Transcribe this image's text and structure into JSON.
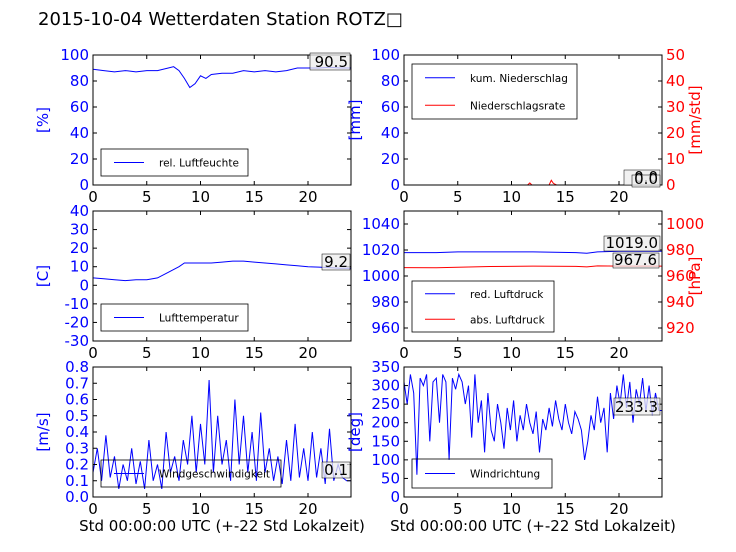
{
  "title": "2015-10-04 Wetterdaten Station ROTZ□",
  "colors": {
    "blue": "#0000ff",
    "red": "#ff0000",
    "black": "#000000"
  },
  "chart_data": [
    {
      "id": "p1",
      "type": "line",
      "ylabel": "[%]",
      "xlim": [
        0,
        24
      ],
      "ylim": [
        0,
        100
      ],
      "xticks": [
        0,
        5,
        10,
        15,
        20
      ],
      "yticks": [
        0,
        20,
        40,
        60,
        80,
        100
      ],
      "value_label": "90.5",
      "legend": {
        "placement": "lower-left",
        "entries": [
          "rel. Luftfeuchte"
        ]
      },
      "series": [
        {
          "name": "rel. Luftfeuchte",
          "color": "#0000ff",
          "x": [
            0,
            1,
            2,
            3,
            4,
            5,
            6,
            7,
            7.5,
            8,
            8.5,
            9,
            9.5,
            10,
            10.5,
            11,
            12,
            13,
            14,
            15,
            16,
            17,
            18,
            19,
            20,
            21,
            22,
            23,
            24
          ],
          "y": [
            89,
            88,
            87,
            88,
            87,
            88,
            88,
            90,
            91,
            88,
            82,
            75,
            78,
            84,
            82,
            85,
            86,
            86,
            88,
            87,
            88,
            87,
            88,
            90,
            90,
            90,
            90.5,
            90,
            90
          ]
        }
      ]
    },
    {
      "id": "p2",
      "type": "line",
      "ylabel": "[mm]",
      "ylabel_right": "[mm/std]",
      "xlim": [
        0,
        24
      ],
      "ylim": [
        0,
        100
      ],
      "ylim_right": [
        0,
        50
      ],
      "xticks": [
        0,
        5,
        10,
        15,
        20
      ],
      "yticks": [
        0,
        20,
        40,
        60,
        80,
        100
      ],
      "yticks_right": [
        0,
        10,
        20,
        30,
        40,
        50
      ],
      "value_labels": [
        "0.0",
        "0.0"
      ],
      "legend": {
        "placement": "upper-left",
        "entries": [
          "kum. Niederschlag",
          "Niederschlagsrate"
        ]
      },
      "series": [
        {
          "name": "kum. Niederschlag",
          "color": "#0000ff",
          "x": [
            0,
            24
          ],
          "y": [
            0,
            0
          ]
        },
        {
          "name": "Niederschlagsrate",
          "color": "#ff0000",
          "axis": "right",
          "x": [
            0,
            11.5,
            11.7,
            11.9,
            13.5,
            13.7,
            13.9,
            14.2,
            24
          ],
          "y": [
            0,
            0,
            0.8,
            0,
            0,
            1.8,
            0.6,
            0,
            0
          ]
        }
      ]
    },
    {
      "id": "p3",
      "type": "line",
      "ylabel": "[C]",
      "xlim": [
        0,
        24
      ],
      "ylim": [
        -30,
        40
      ],
      "xticks": [
        0,
        5,
        10,
        15,
        20
      ],
      "yticks": [
        -30,
        -20,
        -10,
        0,
        10,
        20,
        30,
        40
      ],
      "value_label": "9.2",
      "legend": {
        "placement": "lower-left",
        "entries": [
          "Lufttemperatur"
        ]
      },
      "series": [
        {
          "name": "Lufttemperatur",
          "color": "#0000ff",
          "x": [
            0,
            1,
            2,
            3,
            4,
            5,
            6,
            7,
            8,
            8.5,
            9,
            10,
            11,
            12,
            13,
            14,
            15,
            16,
            17,
            18,
            19,
            20,
            21,
            22,
            23,
            24
          ],
          "y": [
            4,
            3.5,
            3,
            2.5,
            3,
            3,
            4,
            7,
            10,
            12,
            12,
            12,
            12,
            12.5,
            13,
            13,
            12.5,
            12,
            11.5,
            11,
            10.5,
            10,
            9.8,
            9.5,
            9.2,
            9.2
          ]
        }
      ]
    },
    {
      "id": "p4",
      "type": "line",
      "ylabel_right": "[hPa]",
      "xlim": [
        0,
        24
      ],
      "ylim": [
        950,
        1050
      ],
      "ylim_right": [
        910,
        1010
      ],
      "xticks": [
        0,
        5,
        10,
        15,
        20
      ],
      "yticks": [
        960,
        980,
        1000,
        1020,
        1040
      ],
      "yticks_right": [
        920,
        940,
        960,
        980,
        1000
      ],
      "value_labels": [
        "1019.0",
        "967.6"
      ],
      "legend": {
        "placement": "lower-left",
        "entries": [
          "red. Luftdruck",
          "abs. Luftdruck"
        ]
      },
      "series": [
        {
          "name": "red. Luftdruck",
          "color": "#0000ff",
          "x": [
            0,
            3,
            5,
            8,
            12,
            16,
            17,
            18,
            20,
            24
          ],
          "y": [
            1018,
            1018,
            1018.5,
            1018.5,
            1018.5,
            1018,
            1017.5,
            1018.5,
            1019,
            1019
          ]
        },
        {
          "name": "abs. Luftdruck",
          "color": "#ff0000",
          "axis": "right",
          "x": [
            0,
            3,
            5,
            8,
            12,
            16,
            17,
            18,
            20,
            24
          ],
          "y": [
            966.5,
            966.3,
            966.8,
            967.3,
            967.6,
            967.4,
            967,
            967.8,
            967.6,
            967.6
          ]
        }
      ]
    },
    {
      "id": "p5",
      "type": "line",
      "ylabel": "[m/s]",
      "xlabel": "Std 00:00:00 UTC (+-22 Std Lokalzeit)",
      "xlim": [
        0,
        24
      ],
      "ylim": [
        0,
        0.8
      ],
      "xticks": [
        0,
        5,
        10,
        15,
        20
      ],
      "yticks": [
        0.0,
        0.1,
        0.2,
        0.3,
        0.4,
        0.5,
        0.6,
        0.7,
        0.8
      ],
      "value_label": "0.1",
      "legend": {
        "placement": "lower-left",
        "entries": [
          "Windgeschwindigkeit"
        ]
      },
      "series": [
        {
          "name": "Windgeschwindigkeit",
          "color": "#0000ff",
          "x": [
            0,
            0.4,
            0.8,
            1.2,
            1.6,
            2,
            2.4,
            2.8,
            3.2,
            3.6,
            4,
            4.4,
            4.8,
            5.2,
            5.6,
            6,
            6.4,
            6.8,
            7.2,
            7.6,
            8,
            8.4,
            8.8,
            9.2,
            9.6,
            10,
            10.4,
            10.8,
            11.2,
            11.6,
            12,
            12.4,
            12.8,
            13.2,
            13.6,
            14,
            14.4,
            14.8,
            15.2,
            15.6,
            16,
            16.4,
            16.8,
            17.2,
            17.6,
            18,
            18.4,
            18.8,
            19.2,
            19.6,
            20,
            20.4,
            20.8,
            21.2,
            21.6,
            22,
            22.4,
            22.8,
            23.2,
            23.6,
            24
          ],
          "y": [
            0.15,
            0.3,
            0.1,
            0.38,
            0.12,
            0.25,
            0.05,
            0.2,
            0.1,
            0.3,
            0.08,
            0.22,
            0.05,
            0.35,
            0.1,
            0.2,
            0.05,
            0.4,
            0.15,
            0.25,
            0.1,
            0.35,
            0.2,
            0.5,
            0.15,
            0.45,
            0.2,
            0.72,
            0.15,
            0.5,
            0.2,
            0.35,
            0.1,
            0.6,
            0.2,
            0.5,
            0.15,
            0.4,
            0.1,
            0.52,
            0.15,
            0.3,
            0.1,
            0.25,
            0.08,
            0.35,
            0.1,
            0.45,
            0.12,
            0.3,
            0.1,
            0.4,
            0.12,
            0.3,
            0.08,
            0.42,
            0.1,
            0.2,
            0.12,
            0.1,
            0.1
          ]
        }
      ]
    },
    {
      "id": "p6",
      "type": "line",
      "ylabel": "[deg]",
      "xlabel": "Std 00:00:00 UTC (+-22 Std Lokalzeit)",
      "xlim": [
        0,
        24
      ],
      "ylim": [
        0,
        350
      ],
      "xticks": [
        0,
        5,
        10,
        15,
        20
      ],
      "yticks": [
        0,
        50,
        100,
        150,
        200,
        250,
        300,
        350
      ],
      "value_label": "233.3",
      "legend": {
        "placement": "lower-left",
        "entries": [
          "Windrichtung"
        ]
      },
      "series": [
        {
          "name": "Windrichtung",
          "color": "#0000ff",
          "x": [
            0,
            0.3,
            0.6,
            0.9,
            1.2,
            1.5,
            1.8,
            2.1,
            2.4,
            2.7,
            3,
            3.3,
            3.6,
            3.9,
            4.2,
            4.5,
            4.8,
            5.1,
            5.4,
            5.7,
            6,
            6.3,
            6.6,
            6.9,
            7.2,
            7.5,
            7.8,
            8.1,
            8.4,
            8.7,
            9,
            9.3,
            9.6,
            9.9,
            10.2,
            10.5,
            10.8,
            11.1,
            11.4,
            11.7,
            12,
            12.3,
            12.6,
            12.9,
            13.2,
            13.5,
            13.8,
            14.1,
            14.4,
            14.7,
            15,
            15.3,
            15.6,
            15.9,
            16.2,
            16.5,
            16.8,
            17.1,
            17.4,
            17.7,
            18,
            18.3,
            18.6,
            18.9,
            19.2,
            19.5,
            19.8,
            20.1,
            20.4,
            20.7,
            21,
            21.3,
            21.6,
            21.9,
            22.2,
            22.5,
            22.8,
            23.1,
            23.4,
            23.7,
            24
          ],
          "y": [
            310,
            250,
            330,
            280,
            60,
            320,
            300,
            330,
            150,
            310,
            320,
            200,
            330,
            310,
            100,
            320,
            290,
            330,
            310,
            250,
            300,
            160,
            330,
            200,
            260,
            120,
            280,
            180,
            150,
            250,
            200,
            130,
            240,
            180,
            260,
            150,
            220,
            180,
            250,
            200,
            170,
            230,
            120,
            210,
            180,
            240,
            190,
            260,
            210,
            180,
            250,
            200,
            170,
            230,
            210,
            180,
            100,
            150,
            220,
            180,
            270,
            200,
            240,
            120,
            280,
            210,
            300,
            250,
            330,
            240,
            310,
            200,
            290,
            250,
            320,
            230,
            300,
            220,
            280,
            233,
            233
          ]
        }
      ]
    }
  ]
}
